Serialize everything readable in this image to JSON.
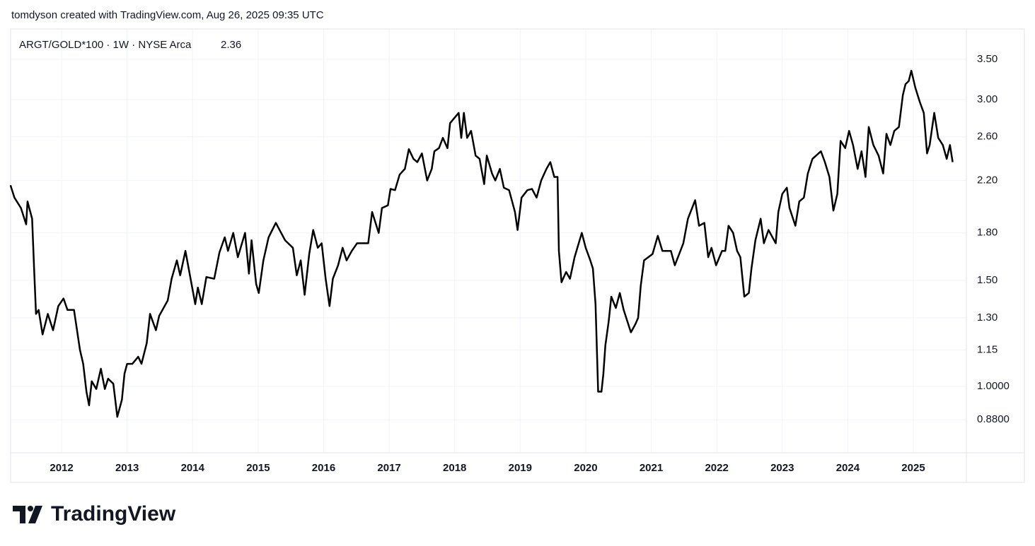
{
  "chart_data": {
    "type": "line",
    "title": "tomdyson created with TradingView.com, Aug 26, 2025 09:35 UTC",
    "logo": "TradingView",
    "last_value": "2.36",
    "log_scale": true,
    "grid": true,
    "xlim": [
      2011.222,
      2025.81
    ],
    "xticks": [
      2012,
      2013,
      2014,
      2015,
      2016,
      2017,
      2018,
      2019,
      2020,
      2021,
      2022,
      2023,
      2024,
      2025
    ],
    "ylim": [
      0.7755,
      3.93
    ],
    "yticks": [
      {
        "value": 3.5,
        "label": "3.50"
      },
      {
        "value": 3,
        "label": "3.00"
      },
      {
        "value": 2.6,
        "label": "2.60"
      },
      {
        "value": 2.2,
        "label": "2.20"
      },
      {
        "value": 1.8,
        "label": "1.80"
      },
      {
        "value": 1.5,
        "label": "1.50"
      },
      {
        "value": 1.3,
        "label": "1.30"
      },
      {
        "value": 1.15,
        "label": "1.15"
      },
      {
        "value": 1,
        "label": "1.0000"
      },
      {
        "value": 0.88,
        "label": "0.8800"
      }
    ],
    "x": [
      2011.22,
      2011.28,
      2011.38,
      2011.46,
      2011.48,
      2011.55,
      2011.58,
      2011.61,
      2011.65,
      2011.71,
      2011.79,
      2011.87,
      2011.95,
      2012.03,
      2012.09,
      2012.19,
      2012.28,
      2012.33,
      2012.38,
      2012.42,
      2012.46,
      2012.53,
      2012.6,
      2012.66,
      2012.71,
      2012.79,
      2012.85,
      2012.92,
      2012.96,
      2013.0,
      2013.08,
      2013.17,
      2013.22,
      2013.3,
      2013.35,
      2013.44,
      2013.49,
      2013.62,
      2013.68,
      2013.76,
      2013.81,
      2013.89,
      2013.95,
      2014.04,
      2014.08,
      2014.14,
      2014.21,
      2014.33,
      2014.41,
      2014.49,
      2014.54,
      2014.62,
      2014.69,
      2014.8,
      2014.86,
      2014.9,
      2014.97,
      2015.01,
      2015.08,
      2015.16,
      2015.27,
      2015.41,
      2015.53,
      2015.59,
      2015.65,
      2015.71,
      2015.78,
      2015.84,
      2015.91,
      2015.97,
      2016.03,
      2016.09,
      2016.14,
      2016.22,
      2016.29,
      2016.35,
      2016.43,
      2016.51,
      2016.68,
      2016.74,
      2016.84,
      2016.89,
      2016.98,
      2017.02,
      2017.09,
      2017.16,
      2017.24,
      2017.3,
      2017.37,
      2017.43,
      2017.5,
      2017.58,
      2017.65,
      2017.69,
      2017.76,
      2017.82,
      2017.89,
      2017.93,
      2018.06,
      2018.1,
      2018.14,
      2018.19,
      2018.25,
      2018.32,
      2018.38,
      2018.45,
      2018.49,
      2018.57,
      2018.62,
      2018.69,
      2018.75,
      2018.83,
      2018.92,
      2018.96,
      2019.02,
      2019.11,
      2019.18,
      2019.25,
      2019.32,
      2019.4,
      2019.46,
      2019.52,
      2019.57,
      2019.59,
      2019.63,
      2019.7,
      2019.76,
      2019.83,
      2019.94,
      2020.0,
      2020.07,
      2020.11,
      2020.15,
      2020.19,
      2020.24,
      2020.27,
      2020.3,
      2020.35,
      2020.39,
      2020.46,
      2020.52,
      2020.58,
      2020.69,
      2020.76,
      2020.8,
      2020.84,
      2020.89,
      2021.02,
      2021.1,
      2021.17,
      2021.3,
      2021.36,
      2021.49,
      2021.56,
      2021.67,
      2021.73,
      2021.81,
      2021.87,
      2021.92,
      2021.99,
      2022.08,
      2022.13,
      2022.18,
      2022.25,
      2022.31,
      2022.36,
      2022.42,
      2022.49,
      2022.53,
      2022.59,
      2022.67,
      2022.72,
      2022.79,
      2022.9,
      2022.94,
      2023.0,
      2023.07,
      2023.11,
      2023.2,
      2023.26,
      2023.33,
      2023.39,
      2023.46,
      2023.59,
      2023.65,
      2023.72,
      2023.78,
      2023.84,
      2023.89,
      2023.96,
      2024.02,
      2024.08,
      2024.15,
      2024.21,
      2024.27,
      2024.32,
      2024.39,
      2024.47,
      2024.54,
      2024.59,
      2024.65,
      2024.71,
      2024.78,
      2024.84,
      2024.88,
      2024.93,
      2024.97,
      2025.03,
      2025.1,
      2025.16,
      2025.21,
      2025.25,
      2025.32,
      2025.38,
      2025.45,
      2025.51,
      2025.56,
      2025.6
    ],
    "series": [
      {
        "name": "ARGT/GOLD*100 · 1W · NYSE Arca",
        "color": "#000000",
        "values": [
          2.16,
          2.06,
          1.98,
          1.86,
          2.03,
          1.9,
          1.57,
          1.32,
          1.34,
          1.22,
          1.32,
          1.24,
          1.36,
          1.4,
          1.34,
          1.34,
          1.15,
          1.09,
          0.98,
          0.93,
          1.02,
          0.99,
          1.07,
          0.99,
          1.03,
          1.01,
          0.89,
          0.95,
          1.05,
          1.09,
          1.09,
          1.12,
          1.09,
          1.18,
          1.32,
          1.24,
          1.31,
          1.39,
          1.51,
          1.62,
          1.53,
          1.68,
          1.55,
          1.37,
          1.46,
          1.37,
          1.52,
          1.51,
          1.67,
          1.77,
          1.68,
          1.8,
          1.64,
          1.8,
          1.54,
          1.75,
          1.48,
          1.43,
          1.62,
          1.77,
          1.87,
          1.75,
          1.7,
          1.53,
          1.62,
          1.42,
          1.66,
          1.82,
          1.7,
          1.73,
          1.51,
          1.36,
          1.51,
          1.59,
          1.7,
          1.62,
          1.68,
          1.73,
          1.73,
          1.95,
          1.8,
          1.98,
          2.0,
          2.13,
          2.12,
          2.25,
          2.3,
          2.48,
          2.39,
          2.36,
          2.44,
          2.2,
          2.3,
          2.46,
          2.49,
          2.59,
          2.49,
          2.74,
          2.85,
          2.59,
          2.85,
          2.59,
          2.66,
          2.42,
          2.39,
          2.17,
          2.42,
          2.26,
          2.2,
          2.3,
          2.14,
          2.12,
          1.95,
          1.82,
          2.06,
          2.12,
          2.13,
          2.06,
          2.2,
          2.3,
          2.36,
          2.23,
          2.23,
          1.68,
          1.49,
          1.55,
          1.51,
          1.64,
          1.8,
          1.7,
          1.62,
          1.57,
          1.37,
          0.98,
          0.98,
          1.05,
          1.17,
          1.28,
          1.41,
          1.35,
          1.43,
          1.34,
          1.23,
          1.27,
          1.3,
          1.47,
          1.62,
          1.66,
          1.78,
          1.68,
          1.68,
          1.59,
          1.73,
          1.9,
          2.04,
          1.85,
          1.87,
          1.64,
          1.7,
          1.59,
          1.68,
          1.68,
          1.85,
          1.8,
          1.68,
          1.64,
          1.41,
          1.43,
          1.57,
          1.75,
          1.9,
          1.73,
          1.82,
          1.73,
          1.95,
          2.09,
          2.14,
          1.98,
          1.85,
          2.03,
          2.06,
          2.26,
          2.39,
          2.46,
          2.36,
          2.23,
          1.96,
          2.09,
          2.56,
          2.49,
          2.66,
          2.52,
          2.3,
          2.46,
          2.23,
          2.7,
          2.52,
          2.42,
          2.26,
          2.63,
          2.52,
          2.66,
          2.7,
          3.05,
          3.18,
          3.22,
          3.35,
          3.14,
          2.97,
          2.85,
          2.44,
          2.52,
          2.85,
          2.59,
          2.52,
          2.39,
          2.52,
          2.36
        ]
      }
    ]
  }
}
